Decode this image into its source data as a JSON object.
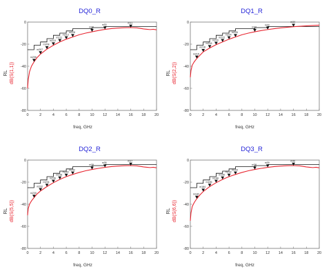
{
  "chart_data": [
    {
      "type": "line",
      "title": "DQ0_R",
      "xlabel": "freq, GHz",
      "ylabel_top": "RL",
      "ylabel_bottom": "dB(S(1,1))",
      "xlim": [
        0,
        20
      ],
      "ylim": [
        -80,
        0
      ],
      "xticks": [
        "0",
        "2",
        "4",
        "6",
        "8",
        "10",
        "12",
        "14",
        "16",
        "18",
        "20"
      ],
      "yticks": [
        "0",
        "-20",
        "-40",
        "-60",
        "-80"
      ],
      "series": [
        {
          "color": "#e8242f",
          "x": [
            0,
            0.1,
            0.3,
            0.6,
            1,
            1.5,
            2,
            3,
            4,
            5,
            6,
            7,
            8,
            9,
            10,
            11,
            12,
            13,
            14,
            15,
            16,
            17,
            18,
            18.5,
            19,
            19.5,
            20
          ],
          "y": [
            -60,
            -52,
            -45,
            -40,
            -36,
            -32,
            -29,
            -24.5,
            -21,
            -18,
            -15.5,
            -13.5,
            -11.5,
            -10,
            -8.8,
            -7.6,
            -6.6,
            -5.9,
            -5.4,
            -5.1,
            -5,
            -5.3,
            -6.2,
            -6.5,
            -6.8,
            -6.5,
            -7
          ]
        },
        {
          "color": "#111111",
          "x": [
            0,
            1,
            1,
            2,
            2,
            3,
            3,
            4,
            4,
            5,
            5,
            6,
            6,
            7,
            7,
            10,
            10,
            12,
            12,
            20
          ],
          "y": [
            -25,
            -25,
            -21,
            -21,
            -18,
            -18,
            -15,
            -15,
            -12,
            -12,
            -10,
            -10,
            -8,
            -8,
            -6,
            -6,
            -5,
            -5,
            -4,
            -4
          ]
        }
      ],
      "markers": [
        {
          "label": "m206",
          "x": 1,
          "y": -36
        },
        {
          "label": "m207",
          "x": 2,
          "y": -29
        },
        {
          "label": "m208",
          "x": 3,
          "y": -24.5
        },
        {
          "label": "m210",
          "x": 4,
          "y": -21
        },
        {
          "label": "m211",
          "x": 5,
          "y": -18
        },
        {
          "label": "m213",
          "x": 6,
          "y": -15.5
        },
        {
          "label": "m228",
          "x": 7,
          "y": -13.5
        },
        {
          "label": "m29",
          "x": 10,
          "y": -8.8
        },
        {
          "label": "m30",
          "x": 12,
          "y": -6.6
        },
        {
          "label": "m31",
          "x": 16,
          "y": -5
        }
      ]
    },
    {
      "type": "line",
      "title": "DQ1_R",
      "xlabel": "freq, GHz",
      "ylabel_top": "RL",
      "ylabel_bottom": "dB(S(2,2))",
      "xlim": [
        0,
        20
      ],
      "ylim": [
        -80,
        0
      ],
      "xticks": [
        "0",
        "2",
        "4",
        "6",
        "8",
        "10",
        "12",
        "14",
        "16",
        "18",
        "20"
      ],
      "yticks": [
        "0",
        "-20",
        "-40",
        "-60",
        "-80"
      ],
      "series": [
        {
          "color": "#e8242f",
          "x": [
            0,
            0.1,
            0.3,
            0.6,
            1,
            1.5,
            2,
            3,
            4,
            5,
            6,
            7,
            8,
            9,
            10,
            11,
            12,
            13,
            14,
            15,
            16,
            17,
            18,
            19,
            20
          ],
          "y": [
            -50,
            -44,
            -39,
            -36,
            -33,
            -30,
            -27,
            -23.5,
            -20.5,
            -18,
            -15.5,
            -13.5,
            -11.5,
            -10,
            -8.8,
            -7.7,
            -6.8,
            -6,
            -5.3,
            -4.7,
            -4.2,
            -3.8,
            -3.4,
            -3.1,
            -2.8
          ]
        },
        {
          "color": "#111111",
          "x": [
            0,
            1,
            1,
            2,
            2,
            3,
            3,
            4,
            4,
            5,
            5,
            6,
            6,
            7,
            7,
            10,
            10,
            12,
            12,
            20
          ],
          "y": [
            -25,
            -25,
            -21,
            -21,
            -18,
            -18,
            -15,
            -15,
            -12,
            -12,
            -10,
            -10,
            -8,
            -8,
            -6,
            -6,
            -5,
            -5,
            -4,
            -4
          ]
        }
      ],
      "markers": [
        {
          "label": "m215",
          "x": 1,
          "y": -33
        },
        {
          "label": "m216",
          "x": 2,
          "y": -27
        },
        {
          "label": "m218",
          "x": 3,
          "y": -23.5
        },
        {
          "label": "m220",
          "x": 4,
          "y": -20.5
        },
        {
          "label": "m222",
          "x": 5,
          "y": -18
        },
        {
          "label": "m224",
          "x": 6,
          "y": -15.5
        },
        {
          "label": "m226",
          "x": 7,
          "y": -13.5
        },
        {
          "label": "m32",
          "x": 10,
          "y": -8.8
        },
        {
          "label": "m33",
          "x": 12,
          "y": -6.8
        },
        {
          "label": "m34",
          "x": 16,
          "y": -4.2
        }
      ]
    },
    {
      "type": "line",
      "title": "DQ2_R",
      "xlabel": "freq, GHz",
      "ylabel_top": "RL",
      "ylabel_bottom": "dB(S(5,5))",
      "xlim": [
        0,
        20
      ],
      "ylim": [
        -80,
        0
      ],
      "xticks": [
        "0",
        "2",
        "4",
        "6",
        "8",
        "10",
        "12",
        "14",
        "16",
        "18",
        "20"
      ],
      "yticks": [
        "0",
        "-20",
        "-40",
        "-60",
        "-80"
      ],
      "series": [
        {
          "color": "#e8242f",
          "x": [
            0,
            0.1,
            0.3,
            0.6,
            1,
            1.5,
            2,
            3,
            4,
            5,
            6,
            7,
            8,
            9,
            10,
            11,
            12,
            13,
            14,
            15,
            16,
            17,
            18,
            18.5,
            19,
            19.5,
            20
          ],
          "y": [
            -50,
            -44,
            -40,
            -37,
            -34,
            -30.5,
            -28,
            -24,
            -20.5,
            -17.5,
            -15,
            -13,
            -11.2,
            -9.7,
            -8.5,
            -7.5,
            -6.6,
            -5.9,
            -5.4,
            -5.1,
            -5,
            -5.3,
            -6.2,
            -6.5,
            -6.8,
            -6.5,
            -7
          ]
        },
        {
          "color": "#111111",
          "x": [
            0,
            1,
            1,
            2,
            2,
            3,
            3,
            4,
            4,
            5,
            5,
            6,
            6,
            7,
            7,
            10,
            10,
            12,
            12,
            20
          ],
          "y": [
            -25,
            -25,
            -21,
            -21,
            -18,
            -18,
            -15,
            -15,
            -12,
            -12,
            -10,
            -10,
            -8,
            -8,
            -6,
            -6,
            -5,
            -5,
            -4,
            -4
          ]
        }
      ],
      "markers": [
        {
          "label": "m230",
          "x": 1,
          "y": -34
        },
        {
          "label": "m232",
          "x": 2,
          "y": -28
        },
        {
          "label": "m234",
          "x": 3,
          "y": -24
        },
        {
          "label": "m236",
          "x": 4,
          "y": -20.5
        },
        {
          "label": "m238",
          "x": 5,
          "y": -17.5
        },
        {
          "label": "m240",
          "x": 6,
          "y": -15
        },
        {
          "label": "m242",
          "x": 7,
          "y": -13
        },
        {
          "label": "m35",
          "x": 10,
          "y": -8.5
        },
        {
          "label": "m36",
          "x": 12,
          "y": -6.6
        },
        {
          "label": "m37",
          "x": 16,
          "y": -5
        }
      ]
    },
    {
      "type": "line",
      "title": "DQ3_R",
      "xlabel": "freq, GHz",
      "ylabel_top": "RL",
      "ylabel_bottom": "dB(S(6,6))",
      "xlim": [
        0,
        20
      ],
      "ylim": [
        -80,
        0
      ],
      "xticks": [
        "0",
        "2",
        "4",
        "6",
        "8",
        "10",
        "12",
        "14",
        "16",
        "18",
        "20"
      ],
      "yticks": [
        "0",
        "-20",
        "-40",
        "-60",
        "-80"
      ],
      "series": [
        {
          "color": "#e8242f",
          "x": [
            0,
            0.1,
            0.3,
            0.6,
            1,
            1.5,
            2,
            3,
            4,
            5,
            6,
            7,
            8,
            9,
            10,
            11,
            12,
            13,
            14,
            15,
            16,
            17,
            18,
            18.5,
            19,
            19.5,
            20
          ],
          "y": [
            -55,
            -48,
            -42,
            -38.5,
            -35,
            -31.5,
            -28.5,
            -24,
            -20.5,
            -17.5,
            -15,
            -13,
            -11.2,
            -9.7,
            -8.5,
            -7.5,
            -6.6,
            -5.9,
            -5.4,
            -5.1,
            -5,
            -5.3,
            -6.2,
            -6.5,
            -6.8,
            -6.5,
            -7
          ]
        },
        {
          "color": "#111111",
          "x": [
            0,
            1,
            1,
            2,
            2,
            3,
            3,
            4,
            4,
            5,
            5,
            6,
            6,
            7,
            7,
            10,
            10,
            12,
            12,
            20
          ],
          "y": [
            -25,
            -25,
            -21,
            -21,
            -18,
            -18,
            -15,
            -15,
            -12,
            -12,
            -10,
            -10,
            -8,
            -8,
            -6,
            -6,
            -5,
            -5,
            -4,
            -4
          ]
        }
      ],
      "markers": [
        {
          "label": "m182",
          "x": 1,
          "y": -35
        },
        {
          "label": "m184",
          "x": 2,
          "y": -28.5
        },
        {
          "label": "m186",
          "x": 3,
          "y": -24
        },
        {
          "label": "m188",
          "x": 4,
          "y": -20.5
        },
        {
          "label": "m190",
          "x": 5,
          "y": -17.5
        },
        {
          "label": "m192",
          "x": 6,
          "y": -15
        },
        {
          "label": "m194",
          "x": 7,
          "y": -13
        },
        {
          "label": "m38",
          "x": 10,
          "y": -8.5
        },
        {
          "label": "m39",
          "x": 12,
          "y": -6.6
        },
        {
          "label": "m40",
          "x": 16,
          "y": -5
        }
      ]
    }
  ]
}
